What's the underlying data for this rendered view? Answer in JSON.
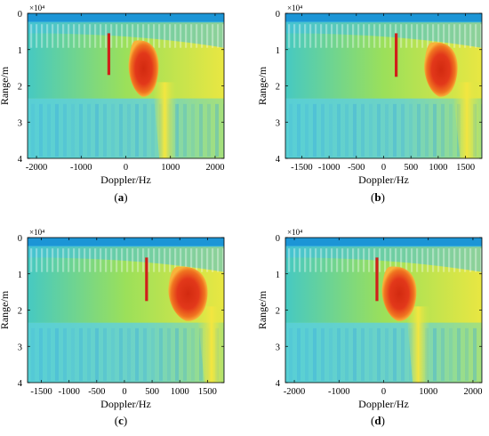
{
  "chart_data": [
    {
      "type": "heatmap",
      "panel": "a",
      "panel_label": "(a)",
      "xlabel": "Doppler/Hz",
      "ylabel": "Range/m",
      "y_exponent_label": "×10⁴",
      "xlim": [
        -2200,
        2200
      ],
      "ylim": [
        0,
        4
      ],
      "x_ticks": [
        -2000,
        -1000,
        0,
        1000,
        2000
      ],
      "x_tick_labels": [
        "-2000",
        "-1000",
        "0",
        "1000",
        "2000"
      ],
      "y_ticks": [
        0,
        1,
        2,
        3,
        4
      ],
      "y_tick_labels": [
        "0",
        "1",
        "2",
        "3",
        "4"
      ],
      "colormap": "jet",
      "target_blob": {
        "doppler_center": 400,
        "doppler_halfwidth": 330,
        "range_from": 0.75,
        "range_to": 2.3
      },
      "red_line": {
        "doppler": -380,
        "range_from": 0.55,
        "range_to": 1.7
      },
      "clutter_ridge_doppler": 950,
      "grid": false
    },
    {
      "type": "heatmap",
      "panel": "b",
      "panel_label": "(b)",
      "xlabel": "Doppler/Hz",
      "ylabel": "Range/m",
      "y_exponent_label": "×10⁴",
      "xlim": [
        -1800,
        1800
      ],
      "ylim": [
        0,
        4
      ],
      "x_ticks": [
        -1500,
        -1000,
        -500,
        0,
        500,
        1000,
        1500
      ],
      "x_tick_labels": [
        "-1500",
        "-1000",
        "-500",
        "0",
        "500",
        "1000",
        "1500"
      ],
      "y_ticks": [
        0,
        1,
        2,
        3,
        4
      ],
      "y_tick_labels": [
        "0",
        "1",
        "2",
        "3",
        "4"
      ],
      "colormap": "jet",
      "target_blob": {
        "doppler_center": 1050,
        "doppler_halfwidth": 300,
        "range_from": 0.8,
        "range_to": 2.3
      },
      "red_line": {
        "doppler": 230,
        "range_from": 0.55,
        "range_to": 1.75
      },
      "clutter_ridge_doppler": 1600,
      "grid": false
    },
    {
      "type": "heatmap",
      "panel": "c",
      "panel_label": "(c)",
      "xlabel": "Doppler/Hz",
      "ylabel": "Range/m",
      "y_exponent_label": "×10⁴",
      "xlim": [
        -1750,
        1800
      ],
      "ylim": [
        0,
        4
      ],
      "x_ticks": [
        -1500,
        -1000,
        -500,
        0,
        500,
        1000,
        1500
      ],
      "x_tick_labels": [
        "-1500",
        "-1000",
        "-500",
        "0",
        "500",
        "1000",
        "1500"
      ],
      "y_ticks": [
        0,
        1,
        2,
        3,
        4
      ],
      "y_tick_labels": [
        "0",
        "1",
        "2",
        "3",
        "4"
      ],
      "colormap": "jet",
      "target_blob": {
        "doppler_center": 1150,
        "doppler_halfwidth": 350,
        "range_from": 0.8,
        "range_to": 2.3
      },
      "red_line": {
        "doppler": 400,
        "range_from": 0.55,
        "range_to": 1.75
      },
      "clutter_ridge_doppler": 1650,
      "grid": false
    },
    {
      "type": "heatmap",
      "panel": "d",
      "panel_label": "(d)",
      "xlabel": "Doppler/Hz",
      "ylabel": "Range/m",
      "y_exponent_label": "×10⁴",
      "xlim": [
        -2200,
        2200
      ],
      "ylim": [
        0,
        4
      ],
      "x_ticks": [
        -2000,
        -1000,
        0,
        1000,
        2000
      ],
      "x_tick_labels": [
        "-2000",
        "-1000",
        "0",
        "1000",
        "2000"
      ],
      "y_ticks": [
        0,
        1,
        2,
        3,
        4
      ],
      "y_tick_labels": [
        "0",
        "1",
        "2",
        "3",
        "4"
      ],
      "colormap": "jet",
      "target_blob": {
        "doppler_center": 350,
        "doppler_halfwidth": 380,
        "range_from": 0.8,
        "range_to": 2.3
      },
      "red_line": {
        "doppler": -150,
        "range_from": 0.55,
        "range_to": 1.75
      },
      "clutter_ridge_doppler": 850,
      "grid": false
    }
  ]
}
